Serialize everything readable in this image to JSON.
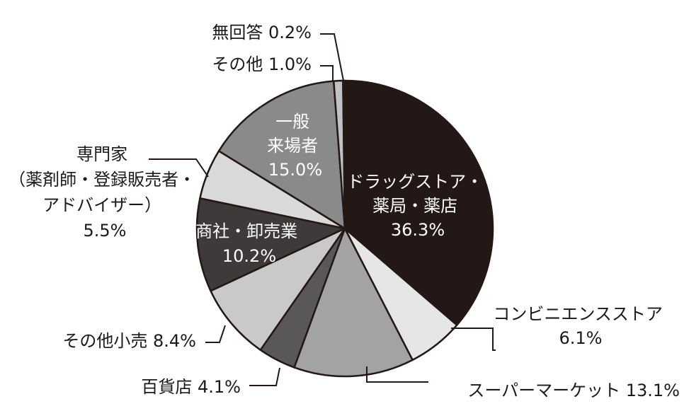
{
  "chart_data": {
    "type": "pie",
    "title": "",
    "start_angle_deg": 0,
    "direction": "clockwise",
    "slices": [
      {
        "lines": [
          "ドラッグストア・",
          "薬局・薬店"
        ],
        "value_label": "36.3%",
        "value": 36.3,
        "color": "#231815",
        "text_color": "#ffffff",
        "placement": "inside"
      },
      {
        "lines": [
          "コンビニエンスストア"
        ],
        "value_label": "6.1%",
        "value": 6.1,
        "color": "#e6e6e6",
        "text_color": "#1a1a1a",
        "placement": "right"
      },
      {
        "lines": [
          "スーパーマーケット 13.1%"
        ],
        "value_label": "",
        "value": 13.1,
        "color": "#a3a3a3",
        "text_color": "#1a1a1a",
        "placement": "bottom-right"
      },
      {
        "lines": [
          "百貨店 4.1%"
        ],
        "value_label": "",
        "value": 4.1,
        "color": "#595757",
        "text_color": "#1a1a1a",
        "placement": "bottom-left"
      },
      {
        "lines": [
          "その他小売 8.4%"
        ],
        "value_label": "",
        "value": 8.4,
        "color": "#c9c9c9",
        "text_color": "#1a1a1a",
        "placement": "left"
      },
      {
        "lines": [
          "商社・卸売業"
        ],
        "value_label": "10.2%",
        "value": 10.2,
        "color": "#3e3a39",
        "text_color": "#ffffff",
        "placement": "inside"
      },
      {
        "lines": [
          "専門家",
          "（薬剤師・登録販売者・",
          "アドバイザー）"
        ],
        "value_label": "5.5%",
        "value": 5.5,
        "color": "#d9d9d9",
        "text_color": "#1a1a1a",
        "placement": "left"
      },
      {
        "lines": [
          "一般",
          "来場者"
        ],
        "value_label": "15.0%",
        "value": 15.0,
        "color": "#8a8a8a",
        "text_color": "#ffffff",
        "placement": "inside"
      },
      {
        "lines": [
          "その他 1.0%"
        ],
        "value_label": "",
        "value": 1.0,
        "color": "#c2c2c2",
        "text_color": "#1a1a1a",
        "placement": "top-left"
      },
      {
        "lines": [
          "無回答 0.2%"
        ],
        "value_label": "",
        "value": 0.2,
        "color": "#7a7a7a",
        "text_color": "#1a1a1a",
        "placement": "top-left"
      }
    ]
  }
}
